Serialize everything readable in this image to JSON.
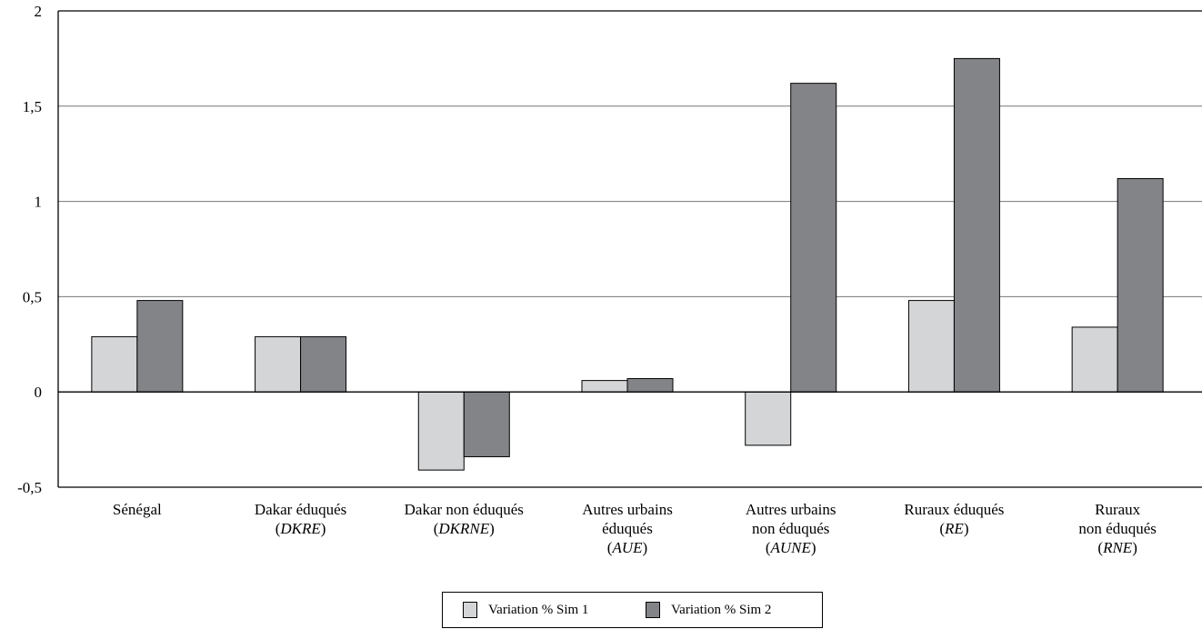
{
  "chart_data": {
    "type": "bar",
    "title": "",
    "xlabel": "",
    "ylabel": "",
    "ylim": [
      -0.5,
      2
    ],
    "grid": "horizontal",
    "y_ticks": [
      {
        "value": -0.5,
        "label": "-0,5"
      },
      {
        "value": 0,
        "label": "0"
      },
      {
        "value": 0.5,
        "label": "0,5"
      },
      {
        "value": 1,
        "label": "1"
      },
      {
        "value": 1.5,
        "label": "1,5"
      },
      {
        "value": 2,
        "label": "2"
      }
    ],
    "categories": [
      "Sénégal",
      "Dakar éduqués (DKRE)",
      "Dakar non éduqués (DKRNE)",
      "Autres urbains éduqués (AUE)",
      "Autres urbains non éduqués (AUNE)",
      "Ruraux éduqués (RE)",
      "Ruraux non éduqués (RNE)"
    ],
    "category_labels": [
      {
        "lines": [
          "Sénégal"
        ],
        "abbr": ""
      },
      {
        "lines": [
          "Dakar éduqués"
        ],
        "abbr": "DKRE"
      },
      {
        "lines": [
          "Dakar non éduqués"
        ],
        "abbr": "DKRNE"
      },
      {
        "lines": [
          "Autres urbains",
          "éduqués"
        ],
        "abbr": "AUE"
      },
      {
        "lines": [
          "Autres urbains",
          "non éduqués"
        ],
        "abbr": "AUNE"
      },
      {
        "lines": [
          "Ruraux éduqués"
        ],
        "abbr": "RE"
      },
      {
        "lines": [
          "Ruraux",
          "non éduqués"
        ],
        "abbr": "RNE"
      }
    ],
    "series": [
      {
        "name": "Variation % Sim 1",
        "color": "#d4d5d7",
        "values": [
          0.29,
          0.29,
          -0.41,
          0.06,
          -0.28,
          0.48,
          0.34
        ]
      },
      {
        "name": "Variation % Sim 2",
        "color": "#838488",
        "values": [
          0.48,
          0.29,
          -0.34,
          0.07,
          1.62,
          1.75,
          1.12
        ]
      }
    ],
    "legend": "bottom"
  }
}
